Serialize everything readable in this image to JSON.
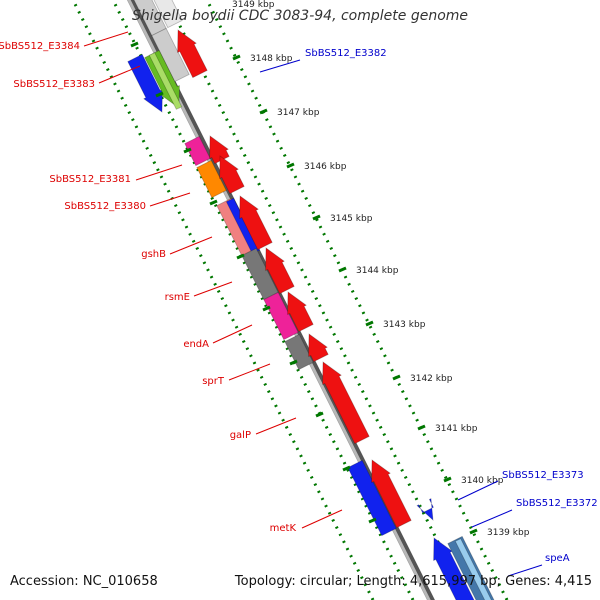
{
  "title": "Shigella boydii CDC 3083-94, complete genome",
  "footer": {
    "accession": "Accession: NC_010658",
    "summary": "Topology: circular; Length: 4,615,997 bp; Genes: 4,415"
  },
  "colors": {
    "reverse_label": "#dd0000",
    "forward_label": "#0000cc",
    "backbone": "#888888",
    "tick": "#007700"
  },
  "scale": {
    "top_cut_label": "3149 kbp",
    "ticks": [
      {
        "label": "3148 kbp"
      },
      {
        "label": "3147 kbp"
      },
      {
        "label": "3146 kbp"
      },
      {
        "label": "3145 kbp"
      },
      {
        "label": "3144 kbp"
      },
      {
        "label": "3143 kbp"
      },
      {
        "label": "3142 kbp"
      },
      {
        "label": "3141 kbp"
      },
      {
        "label": "3140 kbp"
      },
      {
        "label": "3139 kbp"
      }
    ]
  },
  "reverse_genes": [
    {
      "label": "SbBS512_E3384"
    },
    {
      "label": "SbBS512_E3383"
    },
    {
      "label": "SbBS512_E3381"
    },
    {
      "label": "SbBS512_E3380"
    },
    {
      "label": "gshB"
    },
    {
      "label": "rsmE"
    },
    {
      "label": "endA"
    },
    {
      "label": "sprT"
    },
    {
      "label": "galP"
    },
    {
      "label": "metK"
    }
  ],
  "forward_genes": [
    {
      "label": "SbBS512_E3382"
    },
    {
      "label": "SbBS512_E3373"
    },
    {
      "label": "SbBS512_E3372"
    },
    {
      "label": "speA"
    }
  ]
}
